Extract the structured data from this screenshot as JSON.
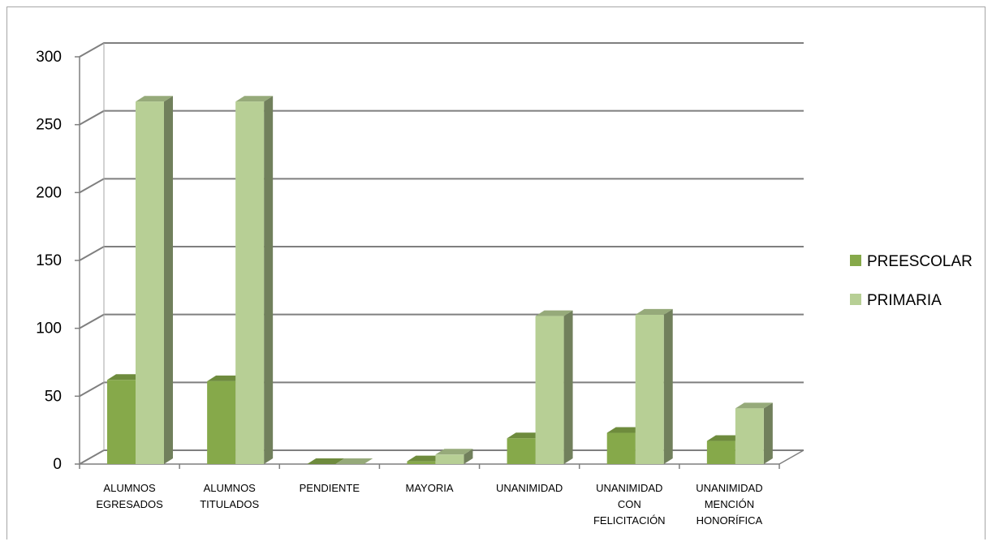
{
  "chart_data": {
    "type": "bar",
    "categories": [
      [
        "ALUMNOS",
        "EGRESADOS"
      ],
      [
        "ALUMNOS",
        "TITULADOS"
      ],
      [
        "PENDIENTE"
      ],
      [
        "MAYORIA"
      ],
      [
        "UNANIMIDAD"
      ],
      [
        "UNANIMIDAD",
        "CON",
        "FELICITACIÓN"
      ],
      [
        "UNANIMIDAD",
        "MENCIÓN",
        "HONORÍFICA"
      ]
    ],
    "series": [
      {
        "name": "PREESCOLAR",
        "values": [
          62,
          61,
          0,
          2,
          19,
          23,
          17
        ],
        "color": "#86a94a"
      },
      {
        "name": "PRIMARIA",
        "values": [
          267,
          267,
          0,
          7,
          109,
          110,
          41
        ],
        "color": "#b7cf95"
      }
    ],
    "yticks": [
      0,
      50,
      100,
      150,
      200,
      250,
      300
    ],
    "ylim": [
      0,
      300
    ],
    "grid": true,
    "legend": "right",
    "style": "3d-clustered-column"
  }
}
